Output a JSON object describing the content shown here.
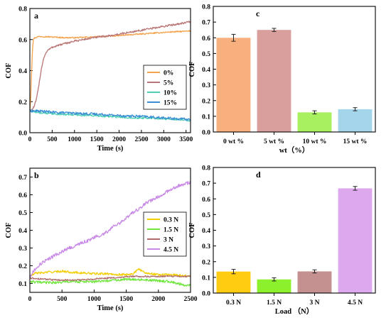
{
  "chart_data": [
    {
      "type": "line",
      "panel_label": "a",
      "xlabel": "Time (s)",
      "ylabel": "COF",
      "xlim": [
        0,
        3600
      ],
      "ylim": [
        0,
        0.8
      ],
      "x_ticks": [
        0,
        500,
        1000,
        1500,
        2000,
        2500,
        3000,
        3500
      ],
      "y_ticks": [
        0.0,
        0.2,
        0.4,
        0.6,
        0.8
      ],
      "legend_position": "center-right",
      "series": [
        {
          "name": "0%",
          "color": "#f4a24b",
          "x": [
            0,
            20,
            40,
            60,
            80,
            100,
            150,
            200,
            300,
            400,
            600,
            800,
            1000,
            1200,
            1500,
            1800,
            2000,
            2500,
            3000,
            3200,
            3400,
            3600
          ],
          "y": [
            0.14,
            0.22,
            0.4,
            0.55,
            0.6,
            0.61,
            0.615,
            0.62,
            0.62,
            0.618,
            0.615,
            0.612,
            0.612,
            0.614,
            0.618,
            0.622,
            0.626,
            0.636,
            0.646,
            0.65,
            0.652,
            0.655
          ]
        },
        {
          "name": "5%",
          "color": "#b97575",
          "x": [
            0,
            50,
            100,
            150,
            200,
            250,
            300,
            350,
            400,
            500,
            600,
            800,
            1000,
            1200,
            1500,
            1800,
            2000,
            2400,
            2800,
            3000,
            3200,
            3400,
            3500,
            3600
          ],
          "y": [
            0.14,
            0.15,
            0.17,
            0.22,
            0.3,
            0.4,
            0.47,
            0.51,
            0.53,
            0.55,
            0.56,
            0.575,
            0.59,
            0.6,
            0.615,
            0.625,
            0.635,
            0.655,
            0.675,
            0.685,
            0.695,
            0.705,
            0.71,
            0.715
          ]
        },
        {
          "name": "10%",
          "color": "#4fd0b3",
          "x": [
            0,
            200,
            400,
            600,
            800,
            1000,
            1500,
            2000,
            2500,
            3000,
            3300,
            3600
          ],
          "y": [
            0.14,
            0.13,
            0.125,
            0.12,
            0.118,
            0.115,
            0.11,
            0.1,
            0.095,
            0.09,
            0.085,
            0.075
          ]
        },
        {
          "name": "15%",
          "color": "#3a8fd4",
          "x": [
            0,
            200,
            400,
            600,
            800,
            1000,
            1500,
            2000,
            2500,
            3000,
            3300,
            3600
          ],
          "y": [
            0.14,
            0.14,
            0.135,
            0.13,
            0.128,
            0.125,
            0.12,
            0.11,
            0.105,
            0.095,
            0.09,
            0.085
          ]
        }
      ]
    },
    {
      "type": "bar",
      "panel_label": "c",
      "xlabel": "wt（%）",
      "ylabel": "COF",
      "ylim": [
        0,
        0.8
      ],
      "y_ticks": [
        0.0,
        0.1,
        0.2,
        0.3,
        0.4,
        0.5,
        0.6,
        0.7,
        0.8
      ],
      "categories": [
        "0 wt %",
        "5 wt %",
        "10 wt %",
        "15 wt %"
      ],
      "values": [
        0.6,
        0.65,
        0.125,
        0.145
      ],
      "errors": [
        0.022,
        0.01,
        0.01,
        0.01
      ],
      "colors": [
        "#f8b07e",
        "#d99f9d",
        "#a8f060",
        "#a5d5ea"
      ]
    },
    {
      "type": "line",
      "panel_label": "b",
      "xlabel": "Time (s)",
      "ylabel": "COF",
      "xlim": [
        0,
        2500
      ],
      "ylim": [
        0.05,
        0.75
      ],
      "x_ticks": [
        0,
        500,
        1000,
        1500,
        2000,
        2500
      ],
      "y_ticks": [
        0.1,
        0.2,
        0.3,
        0.4,
        0.5,
        0.6,
        0.7
      ],
      "legend_position": "center-right",
      "series": [
        {
          "name": "0.3 N",
          "color": "#f2cd00",
          "x": [
            0,
            100,
            200,
            300,
            400,
            500,
            600,
            800,
            1000,
            1200,
            1400,
            1500,
            1600,
            1700,
            1800,
            2000,
            2200,
            2400,
            2500
          ],
          "y": [
            0.14,
            0.16,
            0.16,
            0.165,
            0.165,
            0.17,
            0.165,
            0.16,
            0.155,
            0.155,
            0.15,
            0.15,
            0.155,
            0.18,
            0.16,
            0.15,
            0.15,
            0.145,
            0.14
          ]
        },
        {
          "name": "1.5 N",
          "color": "#6fe63c",
          "x": [
            0,
            200,
            400,
            600,
            800,
            1000,
            1200,
            1400,
            1600,
            1800,
            2000,
            2200,
            2400,
            2500
          ],
          "y": [
            0.11,
            0.105,
            0.105,
            0.11,
            0.11,
            0.11,
            0.115,
            0.12,
            0.125,
            0.12,
            0.115,
            0.11,
            0.09,
            0.09
          ]
        },
        {
          "name": "3 N",
          "color": "#b06a6a",
          "x": [
            0,
            200,
            400,
            600,
            800,
            1000,
            1200,
            1400,
            1600,
            1800,
            2000,
            2200,
            2400,
            2500
          ],
          "y": [
            0.13,
            0.125,
            0.12,
            0.12,
            0.12,
            0.125,
            0.13,
            0.135,
            0.14,
            0.14,
            0.14,
            0.14,
            0.14,
            0.14
          ]
        },
        {
          "name": "4.5 N",
          "color": "#c889e6",
          "x": [
            0,
            100,
            200,
            300,
            400,
            500,
            600,
            700,
            800,
            900,
            1000,
            1100,
            1200,
            1300,
            1400,
            1500,
            1600,
            1700,
            1800,
            1900,
            2000,
            2100,
            2200,
            2300,
            2400,
            2500
          ],
          "y": [
            0.14,
            0.19,
            0.22,
            0.24,
            0.26,
            0.28,
            0.3,
            0.31,
            0.33,
            0.34,
            0.36,
            0.37,
            0.39,
            0.42,
            0.44,
            0.47,
            0.5,
            0.52,
            0.55,
            0.57,
            0.59,
            0.61,
            0.63,
            0.65,
            0.66,
            0.67
          ]
        }
      ]
    },
    {
      "type": "bar",
      "panel_label": "d",
      "xlabel": "Load （N）",
      "ylabel": "COF",
      "ylim": [
        0,
        0.8
      ],
      "y_ticks": [
        0.0,
        0.1,
        0.2,
        0.3,
        0.4,
        0.5,
        0.6,
        0.7,
        0.8
      ],
      "categories": [
        "0.3 N",
        "1.5 N",
        "3 N",
        "4.5 N"
      ],
      "values": [
        0.137,
        0.087,
        0.138,
        0.667
      ],
      "errors": [
        0.014,
        0.01,
        0.01,
        0.012
      ],
      "colors": [
        "#ffcc12",
        "#8cf02c",
        "#c49090",
        "#dda8ee"
      ]
    }
  ]
}
